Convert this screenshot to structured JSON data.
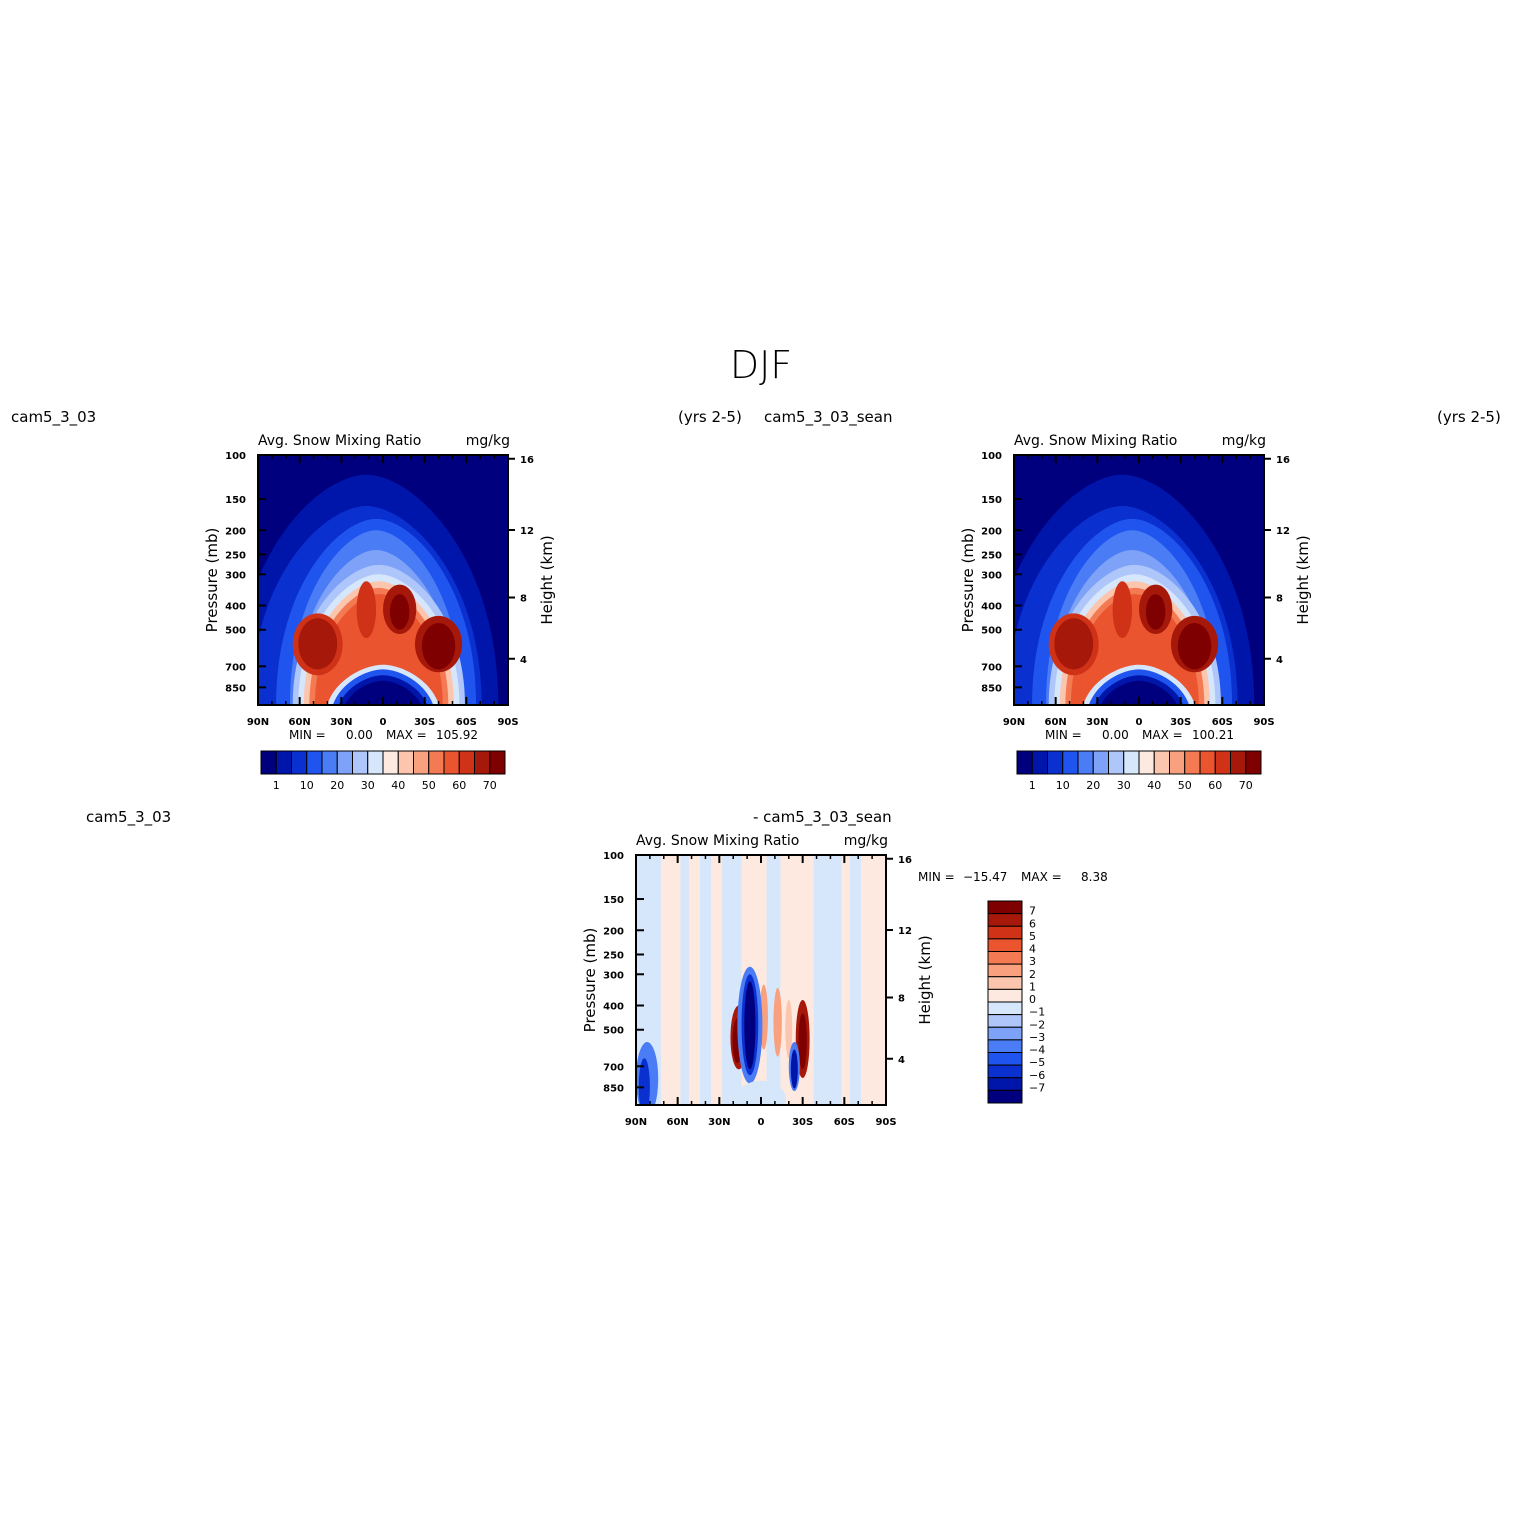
{
  "figure": {
    "title": "DJF",
    "top_left_case": "cam5_3_03",
    "top_left_years": "(yrs 2-5)",
    "top_right_case": "cam5_3_03_sean",
    "top_right_years": "(yrs 2-5)",
    "diff_case_a": "cam5_3_03",
    "diff_case_b": "- cam5_3_03_sean"
  },
  "chart_data": [
    {
      "id": "panel-a",
      "type": "heatmap",
      "title": "Avg. Snow Mixing Ratio",
      "units": "mg/kg",
      "xlabel": "",
      "ylabel": "Pressure (mb)",
      "ylabel_right": "Height (km)",
      "x_ticks": [
        "90N",
        "60N",
        "30N",
        "0",
        "30S",
        "60S",
        "90S"
      ],
      "y_ticks": [
        100,
        150,
        200,
        250,
        300,
        400,
        500,
        700,
        850
      ],
      "y_range": [
        100,
        1000
      ],
      "height_ticks": [
        4,
        8,
        12,
        16
      ],
      "stats": {
        "min_label": "MIN =",
        "min": "0.00",
        "max_label": "MAX =",
        "max": "105.92"
      },
      "colorbar_labels": [
        "1",
        "10",
        "20",
        "30",
        "40",
        "50",
        "60",
        "70"
      ],
      "colors": [
        "#00007f",
        "#0015a9",
        "#0a30d0",
        "#1f55ee",
        "#4a7cf5",
        "#7ea2f7",
        "#aec6f9",
        "#d6e6fb",
        "#fde9df",
        "#fcc5ad",
        "#f9a07f",
        "#f47a53",
        "#ea5530",
        "#cf3216",
        "#a6180a",
        "#7f0000"
      ],
      "fields": [
        {
          "name": "upper-envelope",
          "level": 2,
          "lat_center": 12,
          "lat_halfwidth": 95,
          "p_top": 120,
          "p_bottom": 1000
        },
        {
          "name": "tropical-column",
          "level": 5,
          "lat_center": 5,
          "lat_halfwidth": 62,
          "p_top": 200,
          "p_bottom": 950
        },
        {
          "name": "main-arch",
          "level": 8,
          "lat_center": 3,
          "lat_halfwidth": 58,
          "p_top": 300,
          "p_bottom": 900
        },
        {
          "name": "nh-max",
          "level": 14,
          "lat_center": 47,
          "lat_halfwidth": 14,
          "p_top": 450,
          "p_bottom": 720
        },
        {
          "name": "sh-max",
          "level": 15,
          "lat_center": -40,
          "lat_halfwidth": 12,
          "p_top": 470,
          "p_bottom": 720
        },
        {
          "name": "tropics-max",
          "level": 14,
          "lat_center": -12,
          "lat_halfwidth": 12,
          "p_top": 330,
          "p_bottom": 520
        }
      ]
    },
    {
      "id": "panel-b",
      "type": "heatmap",
      "title": "Avg. Snow Mixing Ratio",
      "units": "mg/kg",
      "xlabel": "",
      "ylabel": "Pressure (mb)",
      "ylabel_right": "Height (km)",
      "x_ticks": [
        "90N",
        "60N",
        "30N",
        "0",
        "30S",
        "60S",
        "90S"
      ],
      "y_ticks": [
        100,
        150,
        200,
        250,
        300,
        400,
        500,
        700,
        850
      ],
      "y_range": [
        100,
        1000
      ],
      "height_ticks": [
        4,
        8,
        12,
        16
      ],
      "stats": {
        "min_label": "MIN =",
        "min": "0.00",
        "max_label": "MAX =",
        "max": "100.21"
      },
      "colorbar_labels": [
        "1",
        "10",
        "20",
        "30",
        "40",
        "50",
        "60",
        "70"
      ],
      "colors": [
        "#00007f",
        "#0015a9",
        "#0a30d0",
        "#1f55ee",
        "#4a7cf5",
        "#7ea2f7",
        "#aec6f9",
        "#d6e6fb",
        "#fde9df",
        "#fcc5ad",
        "#f9a07f",
        "#f47a53",
        "#ea5530",
        "#cf3216",
        "#a6180a",
        "#7f0000"
      ],
      "fields": [
        {
          "name": "upper-envelope",
          "level": 2,
          "lat_center": 12,
          "lat_halfwidth": 95,
          "p_top": 120,
          "p_bottom": 1000
        },
        {
          "name": "tropical-column",
          "level": 5,
          "lat_center": 5,
          "lat_halfwidth": 62,
          "p_top": 200,
          "p_bottom": 950
        },
        {
          "name": "main-arch",
          "level": 8,
          "lat_center": 3,
          "lat_halfwidth": 58,
          "p_top": 300,
          "p_bottom": 900
        },
        {
          "name": "nh-max",
          "level": 14,
          "lat_center": 47,
          "lat_halfwidth": 14,
          "p_top": 450,
          "p_bottom": 720
        },
        {
          "name": "sh-max",
          "level": 15,
          "lat_center": -40,
          "lat_halfwidth": 12,
          "p_top": 470,
          "p_bottom": 720
        },
        {
          "name": "tropics-max",
          "level": 14,
          "lat_center": -12,
          "lat_halfwidth": 12,
          "p_top": 330,
          "p_bottom": 520
        }
      ]
    },
    {
      "id": "panel-diff",
      "type": "heatmap",
      "title": "Avg. Snow Mixing Ratio",
      "units": "mg/kg",
      "xlabel": "",
      "ylabel": "Pressure (mb)",
      "ylabel_right": "Height (km)",
      "x_ticks": [
        "90N",
        "60N",
        "30N",
        "0",
        "30S",
        "60S",
        "90S"
      ],
      "y_ticks": [
        100,
        150,
        200,
        250,
        300,
        400,
        500,
        700,
        850
      ],
      "y_range": [
        100,
        1000
      ],
      "height_ticks": [
        4,
        8,
        12,
        16
      ],
      "stats": {
        "min_label": "MIN =",
        "min": "-15.47",
        "max_label": "MAX =",
        "max": "8.38"
      },
      "colorbar_labels": [
        "7",
        "6",
        "5",
        "4",
        "3",
        "2",
        "1",
        "0",
        "-1",
        "-2",
        "-3",
        "-4",
        "-5",
        "-6",
        "-7"
      ],
      "colors": [
        "#7f0000",
        "#a6180a",
        "#cf3216",
        "#ea5530",
        "#f47a53",
        "#f9a07f",
        "#fcc5ad",
        "#fde9df",
        "#d6e6fb",
        "#aec6f9",
        "#7ea2f7",
        "#4a7cf5",
        "#1f55ee",
        "#0a30d0",
        "#0015a9",
        "#00007f"
      ]
    }
  ]
}
